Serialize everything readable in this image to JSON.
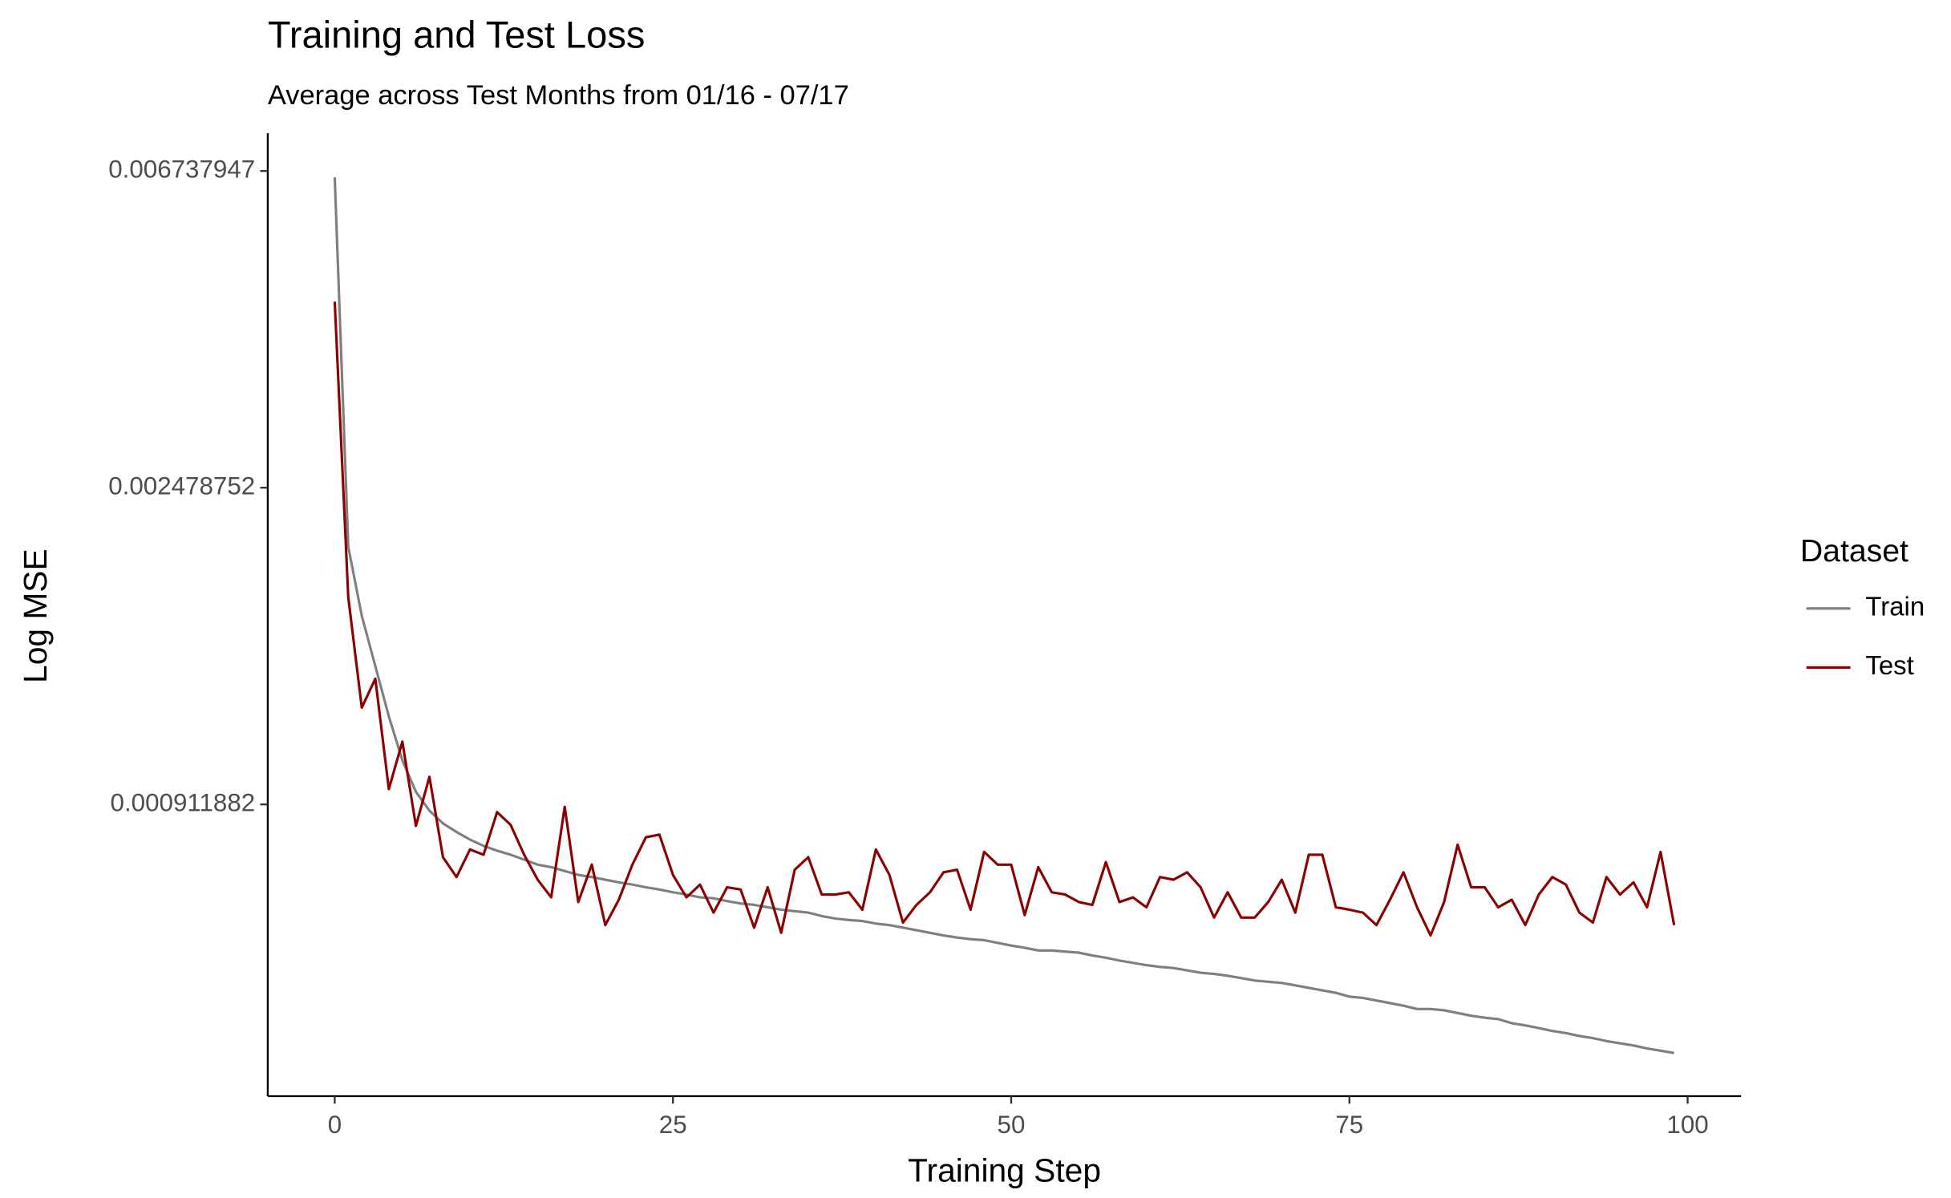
{
  "chart_data": {
    "type": "line",
    "title": "Training and Test Loss",
    "subtitle": "Average across Test Months from 01/16 - 07/17",
    "x_label": "Training Step",
    "y_label": "Log MSE",
    "y_scale": "log",
    "grid": false,
    "legend_title": "Dataset",
    "legend_position": "right",
    "x": [
      0,
      1,
      2,
      3,
      4,
      5,
      6,
      7,
      8,
      9,
      10,
      11,
      12,
      13,
      14,
      15,
      16,
      17,
      18,
      19,
      20,
      21,
      22,
      23,
      24,
      25,
      26,
      27,
      28,
      29,
      30,
      31,
      32,
      33,
      34,
      35,
      36,
      37,
      38,
      39,
      40,
      41,
      42,
      43,
      44,
      45,
      46,
      47,
      48,
      49,
      50,
      51,
      52,
      53,
      54,
      55,
      56,
      57,
      58,
      59,
      60,
      61,
      62,
      63,
      64,
      65,
      66,
      67,
      68,
      69,
      70,
      71,
      72,
      73,
      74,
      75,
      76,
      77,
      78,
      79,
      80,
      81,
      82,
      83,
      84,
      85,
      86,
      87,
      88,
      89,
      90,
      91,
      92,
      93,
      94,
      95,
      96,
      97,
      98,
      99
    ],
    "xlim": [
      -4.95,
      103.95
    ],
    "xticks": [
      0,
      25,
      50,
      75,
      100
    ],
    "ylim": [
      0.000363,
      0.00759
    ],
    "yticks": [
      0.000911882,
      0.002478752,
      0.006737947
    ],
    "series": [
      {
        "name": "Train",
        "color": "#7f7f7f",
        "values": [
          0.006606,
          0.002057,
          0.001654,
          0.001411,
          0.001204,
          0.001048,
          0.000949,
          0.000894,
          0.000859,
          0.000836,
          0.000816,
          0.0008,
          0.000788,
          0.000778,
          0.000766,
          0.000754,
          0.000748,
          0.000739,
          0.00073,
          0.000725,
          0.000719,
          0.000713,
          0.000708,
          0.000702,
          0.000697,
          0.000691,
          0.000686,
          0.00068,
          0.000678,
          0.000672,
          0.000667,
          0.000664,
          0.000659,
          0.000654,
          0.000651,
          0.000648,
          0.000641,
          0.000636,
          0.000633,
          0.000631,
          0.000626,
          0.000623,
          0.000618,
          0.000613,
          0.000608,
          0.000603,
          0.000599,
          0.000596,
          0.000594,
          0.000589,
          0.000584,
          0.00058,
          0.000575,
          0.000575,
          0.000573,
          0.000571,
          0.000566,
          0.000562,
          0.000557,
          0.000553,
          0.000549,
          0.000546,
          0.000544,
          0.00054,
          0.000536,
          0.000534,
          0.000531,
          0.000527,
          0.000523,
          0.000521,
          0.000519,
          0.000515,
          0.000511,
          0.000507,
          0.000503,
          0.000497,
          0.000495,
          0.000491,
          0.000487,
          0.000483,
          0.000478,
          0.000478,
          0.000476,
          0.000472,
          0.000468,
          0.000465,
          0.000463,
          0.000457,
          0.000454,
          0.00045,
          0.000446,
          0.000443,
          0.000439,
          0.000436,
          0.000432,
          0.000429,
          0.000426,
          0.000422,
          0.000419,
          0.000416
        ]
      },
      {
        "name": "Test",
        "color": "#8b0000",
        "values": [
          0.00446,
          0.001755,
          0.001238,
          0.001356,
          0.000957,
          0.001112,
          0.000852,
          0.000995,
          0.000772,
          0.000725,
          0.000791,
          0.000778,
          0.00089,
          0.000855,
          0.000778,
          0.000719,
          0.00068,
          0.000905,
          0.00067,
          0.000754,
          0.000623,
          0.000675,
          0.000754,
          0.000822,
          0.000829,
          0.00073,
          0.00068,
          0.000708,
          0.000648,
          0.000702,
          0.000697,
          0.000618,
          0.000702,
          0.000608,
          0.000742,
          0.000772,
          0.000686,
          0.000686,
          0.000691,
          0.000654,
          0.000791,
          0.00073,
          0.000628,
          0.000664,
          0.000691,
          0.000736,
          0.000742,
          0.000654,
          0.000785,
          0.000754,
          0.000754,
          0.000643,
          0.000748,
          0.000691,
          0.000686,
          0.00067,
          0.000664,
          0.00076,
          0.00067,
          0.00068,
          0.000659,
          0.000725,
          0.000719,
          0.000736,
          0.000702,
          0.000638,
          0.000691,
          0.000638,
          0.000638,
          0.00067,
          0.000719,
          0.000648,
          0.000778,
          0.000778,
          0.000659,
          0.000654,
          0.000648,
          0.000623,
          0.000675,
          0.000736,
          0.000659,
          0.000603,
          0.00067,
          0.000803,
          0.000702,
          0.000702,
          0.000659,
          0.000675,
          0.000623,
          0.000686,
          0.000725,
          0.000708,
          0.000648,
          0.000628,
          0.000725,
          0.000686,
          0.000713,
          0.000659,
          0.000785,
          0.000623
        ]
      }
    ]
  }
}
